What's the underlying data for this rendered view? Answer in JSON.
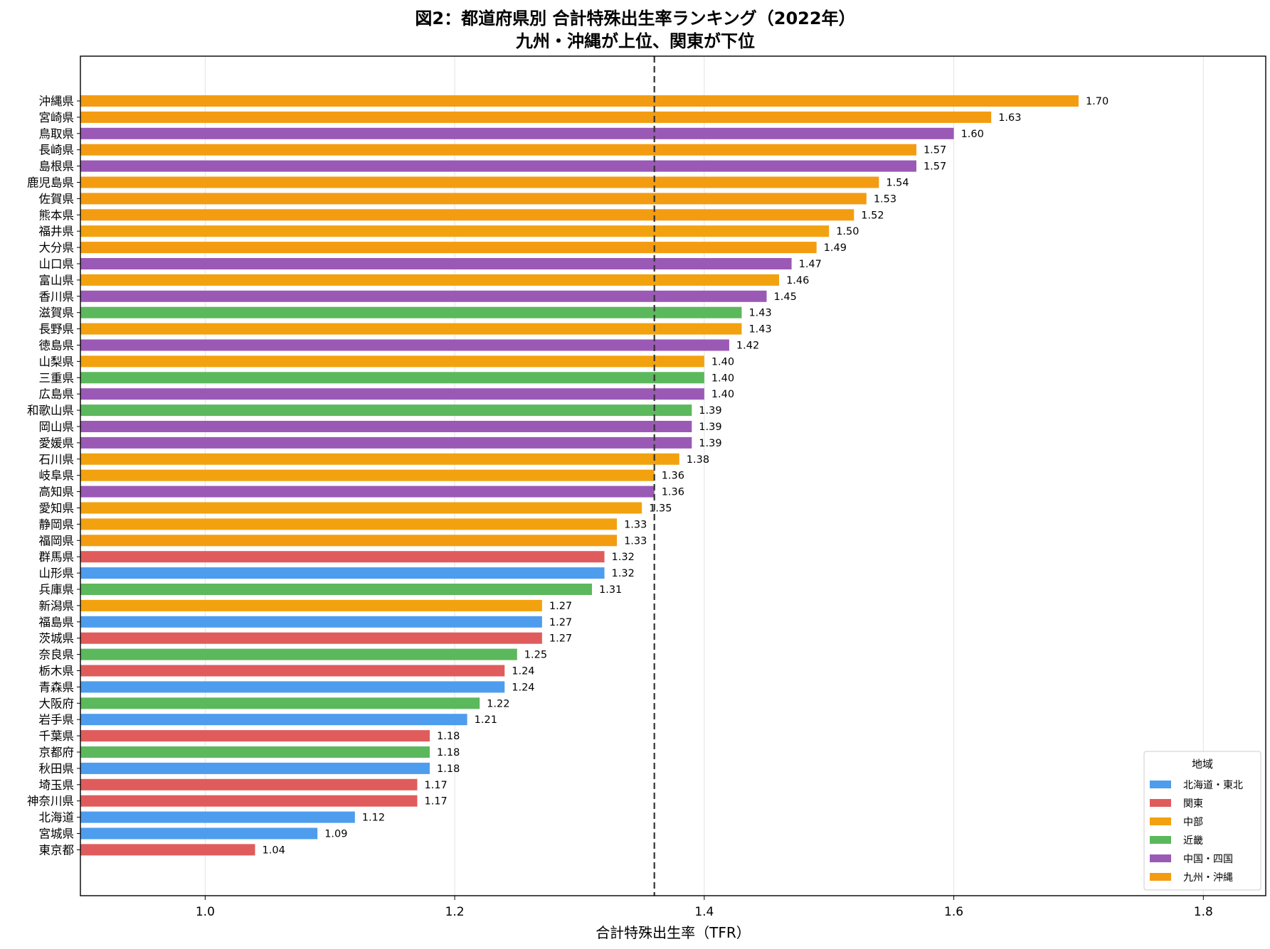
{
  "chart_data": {
    "type": "bar",
    "orientation": "horizontal",
    "title": "図2：都道府県別 合計特殊出生率ランキング（2022年）",
    "subtitle": "九州・沖縄が上位、関東が下位",
    "xlabel": "合計特殊出生率（TFR）",
    "ylabel": "",
    "xlim": [
      0.9,
      1.85
    ],
    "xticks": [
      1.0,
      1.2,
      1.4,
      1.6,
      1.8
    ],
    "xtick_labels": [
      "1.0",
      "1.2",
      "1.4",
      "1.6",
      "1.8"
    ],
    "grid": "vertical",
    "reference_line": {
      "x": 1.36,
      "style": "dashed"
    },
    "legend": {
      "title": "地域",
      "placement": "bottom-right",
      "entries": [
        {
          "name": "北海道・東北",
          "color": "#4e9ced"
        },
        {
          "name": "関東",
          "color": "#e05c5c"
        },
        {
          "name": "中部",
          "color": "#f2a20f"
        },
        {
          "name": "近畿",
          "color": "#5cb85c"
        },
        {
          "name": "中国・四国",
          "color": "#9b59b6"
        },
        {
          "name": "九州・沖縄",
          "color": "#f39c12"
        }
      ]
    },
    "bars": [
      {
        "name": "沖縄県",
        "value": 1.7,
        "label": "1.70",
        "region": "九州・沖縄"
      },
      {
        "name": "宮崎県",
        "value": 1.63,
        "label": "1.63",
        "region": "九州・沖縄"
      },
      {
        "name": "鳥取県",
        "value": 1.6,
        "label": "1.60",
        "region": "中国・四国"
      },
      {
        "name": "長崎県",
        "value": 1.57,
        "label": "1.57",
        "region": "九州・沖縄"
      },
      {
        "name": "島根県",
        "value": 1.57,
        "label": "1.57",
        "region": "中国・四国"
      },
      {
        "name": "鹿児島県",
        "value": 1.54,
        "label": "1.54",
        "region": "九州・沖縄"
      },
      {
        "name": "佐賀県",
        "value": 1.53,
        "label": "1.53",
        "region": "九州・沖縄"
      },
      {
        "name": "熊本県",
        "value": 1.52,
        "label": "1.52",
        "region": "九州・沖縄"
      },
      {
        "name": "福井県",
        "value": 1.5,
        "label": "1.50",
        "region": "中部"
      },
      {
        "name": "大分県",
        "value": 1.49,
        "label": "1.49",
        "region": "九州・沖縄"
      },
      {
        "name": "山口県",
        "value": 1.47,
        "label": "1.47",
        "region": "中国・四国"
      },
      {
        "name": "富山県",
        "value": 1.46,
        "label": "1.46",
        "region": "中部"
      },
      {
        "name": "香川県",
        "value": 1.45,
        "label": "1.45",
        "region": "中国・四国"
      },
      {
        "name": "滋賀県",
        "value": 1.43,
        "label": "1.43",
        "region": "近畿"
      },
      {
        "name": "長野県",
        "value": 1.43,
        "label": "1.43",
        "region": "中部"
      },
      {
        "name": "徳島県",
        "value": 1.42,
        "label": "1.42",
        "region": "中国・四国"
      },
      {
        "name": "山梨県",
        "value": 1.4,
        "label": "1.40",
        "region": "中部"
      },
      {
        "name": "三重県",
        "value": 1.4,
        "label": "1.40",
        "region": "近畿"
      },
      {
        "name": "広島県",
        "value": 1.4,
        "label": "1.40",
        "region": "中国・四国"
      },
      {
        "name": "和歌山県",
        "value": 1.39,
        "label": "1.39",
        "region": "近畿"
      },
      {
        "name": "岡山県",
        "value": 1.39,
        "label": "1.39",
        "region": "中国・四国"
      },
      {
        "name": "愛媛県",
        "value": 1.39,
        "label": "1.39",
        "region": "中国・四国"
      },
      {
        "name": "石川県",
        "value": 1.38,
        "label": "1.38",
        "region": "中部"
      },
      {
        "name": "岐阜県",
        "value": 1.36,
        "label": "1.36",
        "region": "中部"
      },
      {
        "name": "高知県",
        "value": 1.36,
        "label": "1.36",
        "region": "中国・四国"
      },
      {
        "name": "愛知県",
        "value": 1.35,
        "label": "1.35",
        "region": "中部"
      },
      {
        "name": "静岡県",
        "value": 1.33,
        "label": "1.33",
        "region": "中部"
      },
      {
        "name": "福岡県",
        "value": 1.33,
        "label": "1.33",
        "region": "九州・沖縄"
      },
      {
        "name": "群馬県",
        "value": 1.32,
        "label": "1.32",
        "region": "関東"
      },
      {
        "name": "山形県",
        "value": 1.32,
        "label": "1.32",
        "region": "北海道・東北"
      },
      {
        "name": "兵庫県",
        "value": 1.31,
        "label": "1.31",
        "region": "近畿"
      },
      {
        "name": "新潟県",
        "value": 1.27,
        "label": "1.27",
        "region": "中部"
      },
      {
        "name": "福島県",
        "value": 1.27,
        "label": "1.27",
        "region": "北海道・東北"
      },
      {
        "name": "茨城県",
        "value": 1.27,
        "label": "1.27",
        "region": "関東"
      },
      {
        "name": "奈良県",
        "value": 1.25,
        "label": "1.25",
        "region": "近畿"
      },
      {
        "name": "栃木県",
        "value": 1.24,
        "label": "1.24",
        "region": "関東"
      },
      {
        "name": "青森県",
        "value": 1.24,
        "label": "1.24",
        "region": "北海道・東北"
      },
      {
        "name": "大阪府",
        "value": 1.22,
        "label": "1.22",
        "region": "近畿"
      },
      {
        "name": "岩手県",
        "value": 1.21,
        "label": "1.21",
        "region": "北海道・東北"
      },
      {
        "name": "千葉県",
        "value": 1.18,
        "label": "1.18",
        "region": "関東"
      },
      {
        "name": "京都府",
        "value": 1.18,
        "label": "1.18",
        "region": "近畿"
      },
      {
        "name": "秋田県",
        "value": 1.18,
        "label": "1.18",
        "region": "北海道・東北"
      },
      {
        "name": "埼玉県",
        "value": 1.17,
        "label": "1.17",
        "region": "関東"
      },
      {
        "name": "神奈川県",
        "value": 1.17,
        "label": "1.17",
        "region": "関東"
      },
      {
        "name": "北海道",
        "value": 1.12,
        "label": "1.12",
        "region": "北海道・東北"
      },
      {
        "name": "宮城県",
        "value": 1.09,
        "label": "1.09",
        "region": "北海道・東北"
      },
      {
        "name": "東京都",
        "value": 1.04,
        "label": "1.04",
        "region": "関東"
      }
    ]
  }
}
